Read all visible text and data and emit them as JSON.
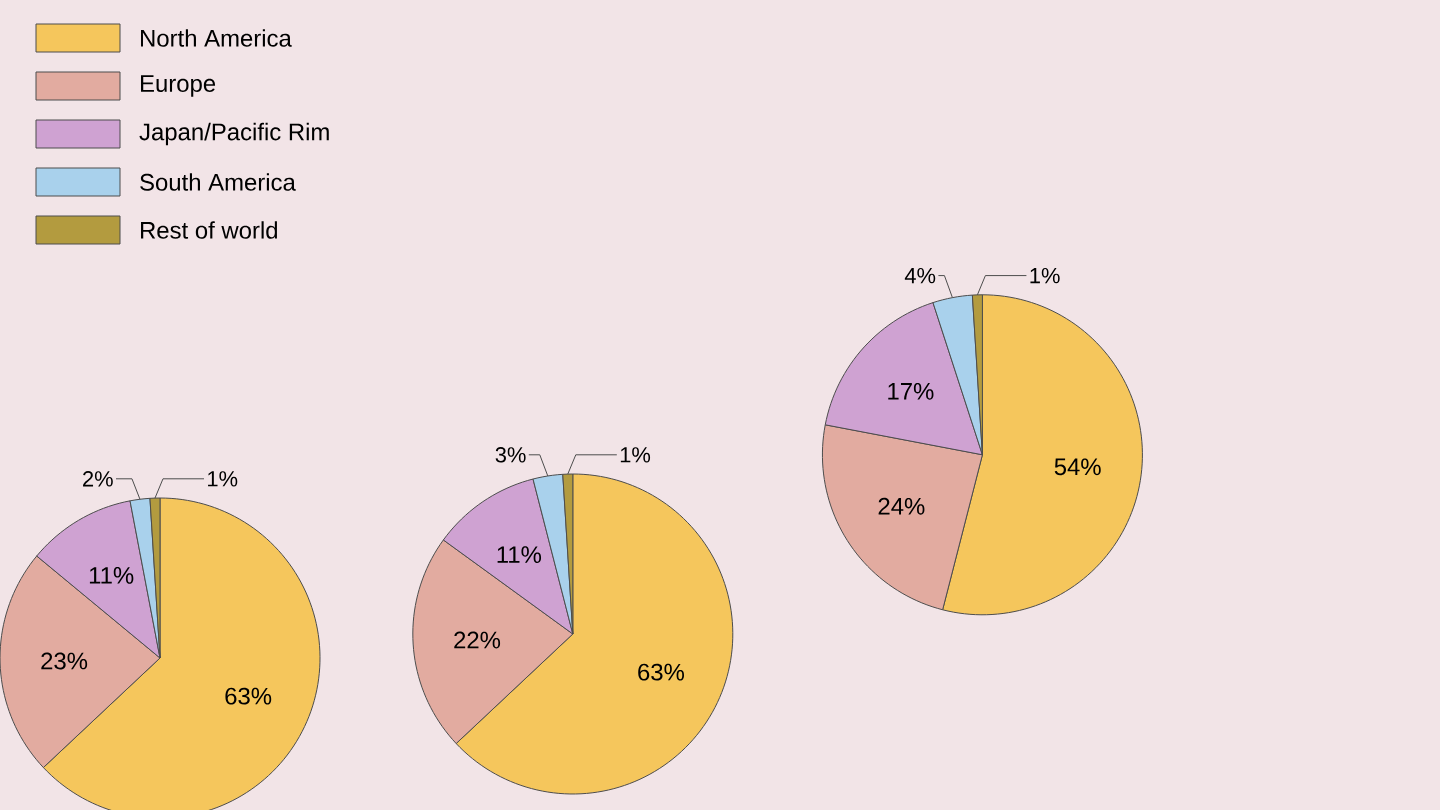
{
  "chart_data": [
    {
      "type": "pie",
      "categories": [
        "North America",
        "Europe",
        "Japan/Pacific Rim",
        "South America",
        "Rest of world"
      ],
      "values": [
        63,
        23,
        11,
        2,
        1
      ],
      "value_labels": [
        "63%",
        "23%",
        "11%",
        "2%",
        "1%"
      ],
      "colors": [
        "#f5c65c",
        "#e2aba0",
        "#cfa2d2",
        "#a9d1ec",
        "#b39b3f"
      ],
      "legend": "top"
    },
    {
      "type": "pie",
      "values": [
        63,
        22,
        11,
        3,
        1
      ],
      "value_labels": [
        "63%",
        "22%",
        "11%",
        "3%",
        "1%"
      ],
      "colors": [
        "#f5c65c",
        "#e2aba0",
        "#cfa2d2",
        "#a9d1ec",
        "#b39b3f"
      ]
    },
    {
      "type": "pie",
      "values": [
        54,
        24,
        17,
        4,
        1
      ],
      "value_labels": [
        "54%",
        "24%",
        "17%",
        "4%",
        "1%"
      ],
      "colors": [
        "#f5c65c",
        "#e2aba0",
        "#cfa2d2",
        "#a9d1ec",
        "#b39b3f"
      ]
    }
  ]
}
